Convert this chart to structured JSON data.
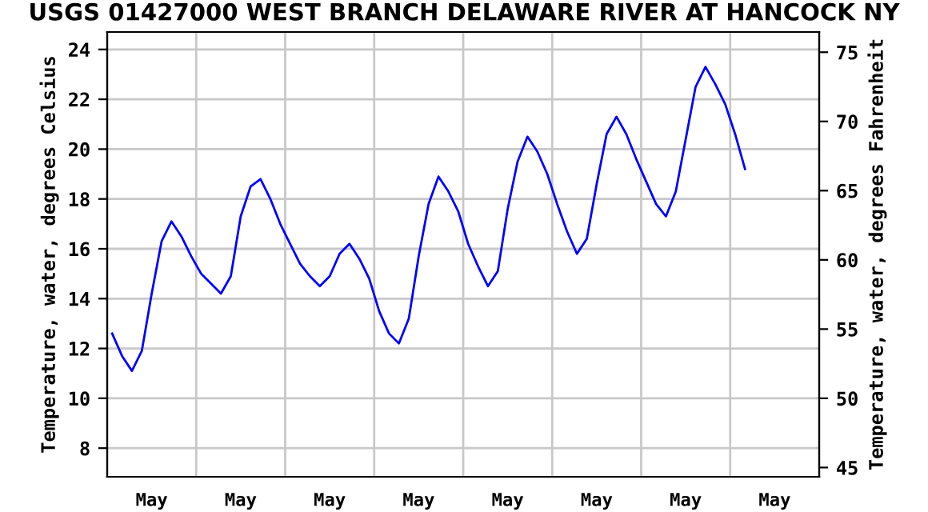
{
  "chart_data": {
    "type": "line",
    "title": "USGS 01427000 WEST BRANCH DELAWARE RIVER AT HANCOCK NY",
    "ylabel": "Temperature, water, degrees Celsius",
    "y2label": "Temperature, water, degrees Fahrenheit",
    "categories": [
      null,
      null,
      null,
      null,
      "May",
      null,
      null,
      null,
      null,
      null,
      null,
      null,
      null,
      "May",
      null,
      null,
      null,
      null,
      null,
      null,
      null,
      null,
      "May",
      null,
      null,
      null,
      null,
      null,
      null,
      null,
      null,
      "May",
      null,
      null,
      null,
      null,
      null,
      null,
      null,
      null,
      "May",
      null,
      null,
      null,
      null,
      null,
      null,
      null,
      null,
      "May",
      null,
      null,
      null,
      null,
      null,
      null,
      null,
      null,
      "May",
      null,
      null,
      null,
      null,
      null,
      null,
      null,
      null,
      "May",
      null,
      null,
      null,
      null
    ],
    "series": [
      {
        "color": "#0000ff",
        "values": [
          12.6,
          11.7,
          11.1,
          11.9,
          14.2,
          16.3,
          17.1,
          16.5,
          15.7,
          15.0,
          14.6,
          14.2,
          14.9,
          17.3,
          18.5,
          18.8,
          18.0,
          17.0,
          16.2,
          15.4,
          14.9,
          14.5,
          14.9,
          15.8,
          16.2,
          15.6,
          14.8,
          13.5,
          12.6,
          12.2,
          13.2,
          15.7,
          17.8,
          18.9,
          18.3,
          17.5,
          16.2,
          15.3,
          14.5,
          15.1,
          17.6,
          19.5,
          20.5,
          19.9,
          19.0,
          17.8,
          16.7,
          15.8,
          16.4,
          18.6,
          20.6,
          21.3,
          20.6,
          19.6,
          18.7,
          17.8,
          17.3,
          18.3,
          20.4,
          22.5,
          23.3,
          22.6,
          21.8,
          20.6,
          19.2,
          null,
          null,
          null,
          null,
          null,
          null,
          null
        ]
      }
    ],
    "ylim": [
      6.85,
      24.7
    ],
    "yticks": [
      8,
      10,
      12,
      14,
      16,
      18,
      20,
      22,
      24
    ],
    "y2lim": [
      44.33,
      76.46
    ],
    "y2ticks": [
      45,
      50,
      55,
      60,
      65,
      70,
      75
    ],
    "grid": true,
    "legend": false,
    "marker": "none",
    "line_style": "solid"
  }
}
